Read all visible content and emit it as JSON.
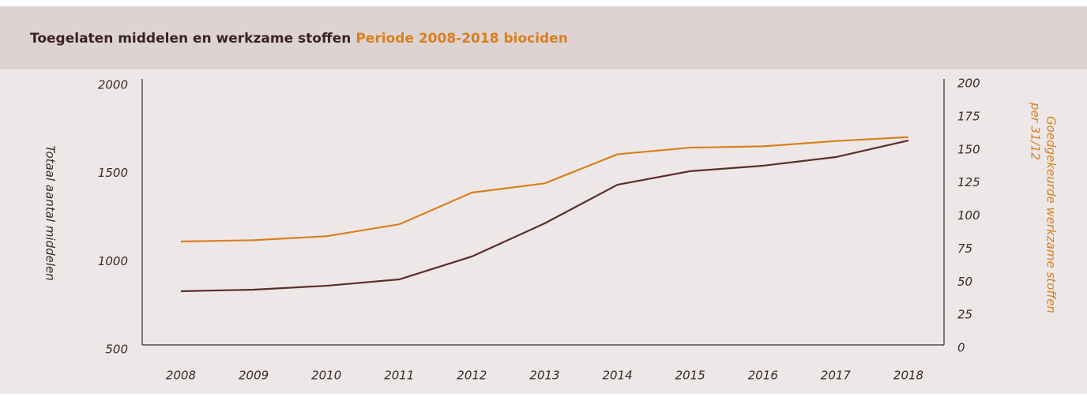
{
  "chart_data": {
    "type": "line",
    "title": "Toegelaten middelen en werkzame stoffen",
    "subtitle": "Periode 2008-2018 biociden",
    "ylabel": "Totaal aantal middelen",
    "y2label": [
      "Goedgekeurde werkzame stoffen",
      "per 31/12"
    ],
    "categories": [
      "2008",
      "2009",
      "2010",
      "2011",
      "2012",
      "2013",
      "2014",
      "2015",
      "2016",
      "2017",
      "2018"
    ],
    "ylim": [
      500,
      2000
    ],
    "yticks": [
      500,
      1000,
      1500,
      2000
    ],
    "y2lim": [
      0,
      200
    ],
    "y2ticks": [
      0,
      25,
      50,
      75,
      100,
      125,
      150,
      175,
      200
    ],
    "series": [
      {
        "color": "#5a2f2b",
        "values": [
          818,
          827,
          849,
          885,
          1015,
          1203,
          1422,
          1499,
          1530,
          1579,
          1673
        ]
      },
      {
        "color": "#d97f1e",
        "axis": "y2",
        "values": [
          80,
          81,
          84,
          93,
          117,
          124,
          146,
          151,
          152,
          156,
          159
        ]
      }
    ]
  }
}
